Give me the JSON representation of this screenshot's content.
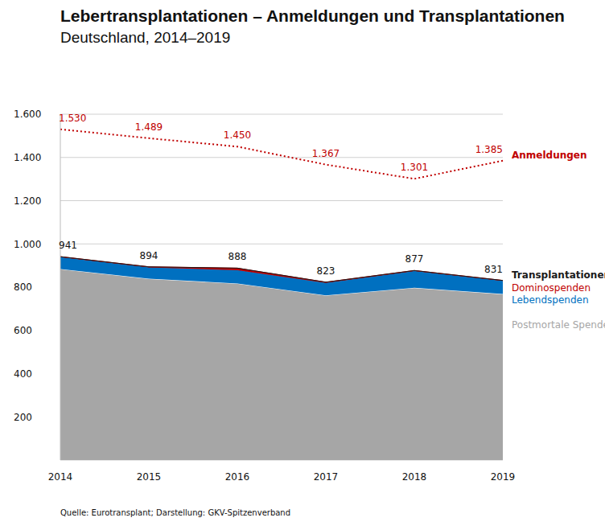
{
  "chart_data": {
    "type": "area",
    "title": "Lebertransplantationen – Anmeldungen und Transplantationen",
    "subtitle": "Deutschland, 2014–2019",
    "source": "Quelle: Eurotransplant; Darstellung: GKV-Spitzenverband",
    "stacked": true,
    "grid": true,
    "categories": [
      "2014",
      "2015",
      "2016",
      "2017",
      "2018",
      "2019"
    ],
    "series": [
      {
        "name": "Postmortale Spenden",
        "color": "#a6a6a6",
        "values": [
          884,
          839,
          817,
          762,
          797,
          768
        ]
      },
      {
        "name": "Lebendspenden",
        "color": "#0070c0",
        "values": [
          55,
          52,
          61,
          58,
          77,
          61
        ]
      },
      {
        "name": "Dominospenden",
        "color": "#c00000",
        "values": [
          2,
          3,
          10,
          3,
          3,
          2
        ]
      },
      {
        "name": "Transplantationen",
        "type": "line",
        "color": "#1a1a1a",
        "data_labels": true,
        "values": [
          941,
          894,
          888,
          823,
          877,
          831
        ]
      },
      {
        "name": "Anmeldungen",
        "type": "line",
        "line_style": "dotted",
        "color": "#c00000",
        "data_labels": true,
        "values": [
          1530,
          1489,
          1450,
          1367,
          1301,
          1385
        ],
        "value_labels": [
          "1.530",
          "1.489",
          "1.450",
          "1.367",
          "1.301",
          "1.385"
        ]
      }
    ],
    "ylim": [
      0,
      1600
    ],
    "yticks": [
      200,
      400,
      600,
      800,
      {
        "value": 1000,
        "label": "1.000"
      },
      {
        "value": 1200,
        "label": "1.200"
      },
      {
        "value": 1400,
        "label": "1.400"
      },
      {
        "value": 1600,
        "label": "1.600"
      }
    ]
  }
}
